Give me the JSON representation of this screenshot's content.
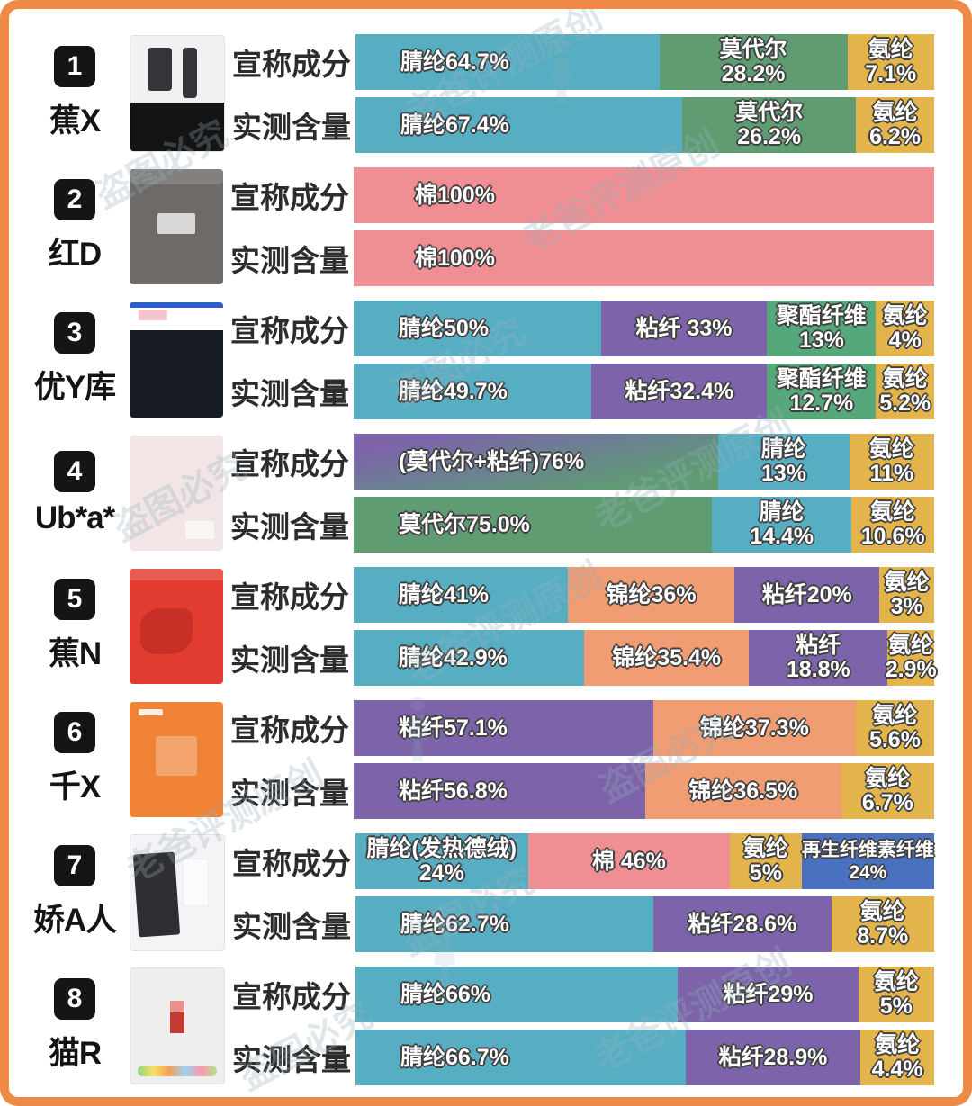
{
  "row_labels": {
    "claimed": "宣称成分",
    "measured": "实测含量"
  },
  "watermark": {
    "line1": "老爸评测原创",
    "line2": "盗图必究"
  },
  "frame_color": "#ee8a45",
  "material_colors": {
    "acrylic": "#57aec3",
    "modal": "#5f9c71",
    "spandex": "#e3b44c",
    "cotton": "#ef8e93",
    "viscose": "#7c63aa",
    "polyester": "#56a87a",
    "nylon": "#f19d73",
    "regen": "#4a71c0",
    "mix": "gradient(#7c63aa,#5f9c71)"
  },
  "chart_data": {
    "type": "bar",
    "subtype": "paired-stacked-horizontal",
    "bar_pair_labels": [
      "宣称成分",
      "实测含量"
    ],
    "unit": "%",
    "products": [
      {
        "rank": "1",
        "name": "蕉X",
        "claimed": [
          {
            "material": "腈纶",
            "value": 64.7,
            "lines": [
              "腈纶64.7%"
            ],
            "color": "acrylic",
            "width_pct": 52.5,
            "align": "left"
          },
          {
            "material": "莫代尔",
            "value": 28.2,
            "lines": [
              "莫代尔",
              "28.2%"
            ],
            "color": "modal",
            "width_pct": 32.5
          },
          {
            "material": "氨纶",
            "value": 7.1,
            "lines": [
              "氨纶",
              "7.1%"
            ],
            "color": "spandex",
            "width_pct": 15
          }
        ],
        "measured": [
          {
            "material": "腈纶",
            "value": 67.4,
            "lines": [
              "腈纶67.4%"
            ],
            "color": "acrylic",
            "width_pct": 56.5,
            "align": "left"
          },
          {
            "material": "莫代尔",
            "value": 26.2,
            "lines": [
              "莫代尔",
              "26.2%"
            ],
            "color": "modal",
            "width_pct": 30
          },
          {
            "material": "氨纶",
            "value": 6.2,
            "lines": [
              "氨纶",
              "6.2%"
            ],
            "color": "spandex",
            "width_pct": 13.5
          }
        ]
      },
      {
        "rank": "2",
        "name": "红D",
        "claimed": [
          {
            "material": "棉",
            "value": 100,
            "lines": [
              "棉100%"
            ],
            "color": "cotton",
            "width_pct": 100,
            "align": "left-lg"
          }
        ],
        "measured": [
          {
            "material": "棉",
            "value": 100,
            "lines": [
              "棉100%"
            ],
            "color": "cotton",
            "width_pct": 100,
            "align": "left-lg"
          }
        ]
      },
      {
        "rank": "3",
        "name": "优Y库",
        "claimed": [
          {
            "material": "腈纶",
            "value": 50,
            "lines": [
              "腈纶50%"
            ],
            "color": "acrylic",
            "width_pct": 42.6,
            "align": "left"
          },
          {
            "material": "粘纤",
            "value": 33,
            "lines": [
              "粘纤 33%"
            ],
            "color": "viscose",
            "width_pct": 28.6
          },
          {
            "material": "聚酯纤维",
            "value": 13,
            "lines": [
              "聚酯纤维",
              "13%"
            ],
            "color": "polyester",
            "width_pct": 18.8
          },
          {
            "material": "氨纶",
            "value": 4,
            "lines": [
              "氨纶",
              "4%"
            ],
            "color": "spandex",
            "width_pct": 10
          }
        ],
        "measured": [
          {
            "material": "腈纶",
            "value": 49.7,
            "lines": [
              "腈纶49.7%"
            ],
            "color": "acrylic",
            "width_pct": 41,
            "align": "left"
          },
          {
            "material": "粘纤",
            "value": 32.4,
            "lines": [
              "粘纤32.4%"
            ],
            "color": "viscose",
            "width_pct": 30.2
          },
          {
            "material": "聚酯纤维",
            "value": 12.7,
            "lines": [
              "聚酯纤维",
              "12.7%"
            ],
            "color": "polyester",
            "width_pct": 18.8
          },
          {
            "material": "氨纶",
            "value": 5.2,
            "lines": [
              "氨纶",
              "5.2%"
            ],
            "color": "spandex",
            "width_pct": 10
          }
        ]
      },
      {
        "rank": "4",
        "name": "Ub*a*",
        "claimed": [
          {
            "material": "莫代尔+粘纤",
            "value": 76,
            "lines": [
              "(莫代尔+粘纤)76%"
            ],
            "color": "mix",
            "width_pct": 62.8,
            "align": "left"
          },
          {
            "material": "腈纶",
            "value": 13,
            "lines": [
              "腈纶",
              "13%"
            ],
            "color": "acrylic",
            "width_pct": 22.6
          },
          {
            "material": "氨纶",
            "value": 11,
            "lines": [
              "氨纶",
              "11%"
            ],
            "color": "spandex",
            "width_pct": 14.6
          }
        ],
        "measured": [
          {
            "material": "莫代尔",
            "value": 75.0,
            "lines": [
              "莫代尔75.0%"
            ],
            "color": "modal",
            "width_pct": 61.7,
            "align": "left"
          },
          {
            "material": "腈纶",
            "value": 14.4,
            "lines": [
              "腈纶",
              "14.4%"
            ],
            "color": "acrylic",
            "width_pct": 24.1
          },
          {
            "material": "氨纶",
            "value": 10.6,
            "lines": [
              "氨纶",
              "10.6%"
            ],
            "color": "spandex",
            "width_pct": 14.2
          }
        ]
      },
      {
        "rank": "5",
        "name": "蕉N",
        "claimed": [
          {
            "material": "腈纶",
            "value": 41,
            "lines": [
              "腈纶41%"
            ],
            "color": "acrylic",
            "width_pct": 36.9,
            "align": "left"
          },
          {
            "material": "锦纶",
            "value": 36,
            "lines": [
              "锦纶36%"
            ],
            "color": "nylon",
            "width_pct": 28.7
          },
          {
            "material": "粘纤",
            "value": 20,
            "lines": [
              "粘纤20%"
            ],
            "color": "viscose",
            "width_pct": 25
          },
          {
            "material": "氨纶",
            "value": 3,
            "lines": [
              "氨纶",
              "3%"
            ],
            "color": "spandex",
            "width_pct": 9.4
          }
        ],
        "measured": [
          {
            "material": "腈纶",
            "value": 42.9,
            "lines": [
              "腈纶42.9%"
            ],
            "color": "acrylic",
            "width_pct": 39.7,
            "align": "left"
          },
          {
            "material": "锦纶",
            "value": 35.4,
            "lines": [
              "锦纶35.4%"
            ],
            "color": "nylon",
            "width_pct": 28.4
          },
          {
            "material": "粘纤",
            "value": 18.8,
            "lines": [
              "粘纤",
              "18.8%"
            ],
            "color": "viscose",
            "width_pct": 23.9
          },
          {
            "material": "氨纶",
            "value": 2.9,
            "lines": [
              "氨纶",
              "2.9%"
            ],
            "color": "spandex",
            "width_pct": 8
          }
        ]
      },
      {
        "rank": "6",
        "name": "千X",
        "claimed": [
          {
            "material": "粘纤",
            "value": 57.1,
            "lines": [
              "粘纤57.1%"
            ],
            "color": "viscose",
            "width_pct": 51.6,
            "align": "left"
          },
          {
            "material": "锦纶",
            "value": 37.3,
            "lines": [
              "锦纶37.3%"
            ],
            "color": "nylon",
            "width_pct": 34.9
          },
          {
            "material": "氨纶",
            "value": 5.6,
            "lines": [
              "氨纶",
              "5.6%"
            ],
            "color": "spandex",
            "width_pct": 13.5
          }
        ],
        "measured": [
          {
            "material": "粘纤",
            "value": 56.8,
            "lines": [
              "粘纤56.8%"
            ],
            "color": "viscose",
            "width_pct": 50.2,
            "align": "left"
          },
          {
            "material": "锦纶",
            "value": 36.5,
            "lines": [
              "锦纶36.5%"
            ],
            "color": "nylon",
            "width_pct": 33.8
          },
          {
            "material": "氨纶",
            "value": 6.7,
            "lines": [
              "氨纶",
              "6.7%"
            ],
            "color": "spandex",
            "width_pct": 16
          }
        ]
      },
      {
        "rank": "7",
        "name": "娇A人",
        "claimed": [
          {
            "material": "腈纶(发热德绒)",
            "value": 24,
            "lines": [
              "腈纶(发热德绒)",
              "24%"
            ],
            "color": "acrylic",
            "width_pct": 29.8
          },
          {
            "material": "棉",
            "value": 46,
            "lines": [
              "棉 46%"
            ],
            "color": "cotton",
            "width_pct": 34.9
          },
          {
            "material": "氨纶",
            "value": 5,
            "lines": [
              "氨纶",
              "5%"
            ],
            "color": "spandex",
            "width_pct": 12.4
          },
          {
            "material": "再生纤维素纤维",
            "value": 24,
            "lines": [
              "再生纤维素纤维",
              "24%"
            ],
            "color": "regen",
            "width_pct": 22.9,
            "small": true
          }
        ],
        "measured": [
          {
            "material": "腈纶",
            "value": 62.7,
            "lines": [
              "腈纶62.7%"
            ],
            "color": "acrylic",
            "width_pct": 51.5,
            "align": "left"
          },
          {
            "material": "粘纤",
            "value": 28.6,
            "lines": [
              "粘纤28.6%"
            ],
            "color": "viscose",
            "width_pct": 30.7
          },
          {
            "material": "氨纶",
            "value": 8.7,
            "lines": [
              "氨纶",
              "8.7%"
            ],
            "color": "spandex",
            "width_pct": 17.8
          }
        ]
      },
      {
        "rank": "8",
        "name": "猫R",
        "claimed": [
          {
            "material": "腈纶",
            "value": 66,
            "lines": [
              "腈纶66%"
            ],
            "color": "acrylic",
            "width_pct": 55.7,
            "align": "left"
          },
          {
            "material": "粘纤",
            "value": 29,
            "lines": [
              "粘纤29%"
            ],
            "color": "viscose",
            "width_pct": 31.2
          },
          {
            "material": "氨纶",
            "value": 5,
            "lines": [
              "氨纶",
              "5%"
            ],
            "color": "spandex",
            "width_pct": 13.1
          }
        ],
        "measured": [
          {
            "material": "腈纶",
            "value": 66.7,
            "lines": [
              "腈纶66.7%"
            ],
            "color": "acrylic",
            "width_pct": 57,
            "align": "left"
          },
          {
            "material": "粘纤",
            "value": 28.9,
            "lines": [
              "粘纤28.9%"
            ],
            "color": "viscose",
            "width_pct": 30.3
          },
          {
            "material": "氨纶",
            "value": 4.4,
            "lines": [
              "氨纶",
              "4.4%"
            ],
            "color": "spandex",
            "width_pct": 12.7
          }
        ]
      }
    ]
  }
}
